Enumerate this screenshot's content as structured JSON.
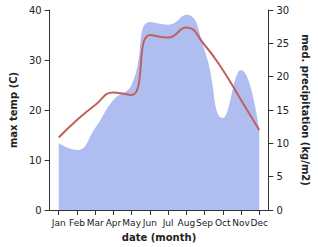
{
  "chart_data": {
    "type": "line",
    "xlabel": "date (month)",
    "ylabel": "max temp (C)",
    "y2label": "med. precipitation (kg/m2)",
    "categories": [
      "Jan",
      "Feb",
      "Mar",
      "Apr",
      "May",
      "Jun",
      "Jul",
      "Aug",
      "Sep",
      "Oct",
      "Nov",
      "Dec"
    ],
    "series": [
      {
        "type": "area",
        "axis": "y2",
        "color": "#b0bdf0",
        "values": [
          10,
          9,
          12.3,
          16.5,
          18.8,
          28.2,
          27.8,
          29.3,
          24,
          13.8,
          21,
          12
        ]
      },
      {
        "type": "line",
        "color": "#c0605c",
        "values": [
          14.5,
          18,
          21,
          23.5,
          23,
          35,
          34.5,
          36.5,
          33,
          28,
          22,
          16
        ]
      }
    ],
    "ylim": [
      0,
      40
    ],
    "yticks": [
      0,
      10,
      20,
      30,
      40
    ],
    "y2lim": [
      0,
      30
    ],
    "y2ticks": [
      0,
      5,
      10,
      15,
      20,
      25,
      30
    ],
    "grid": false
  }
}
